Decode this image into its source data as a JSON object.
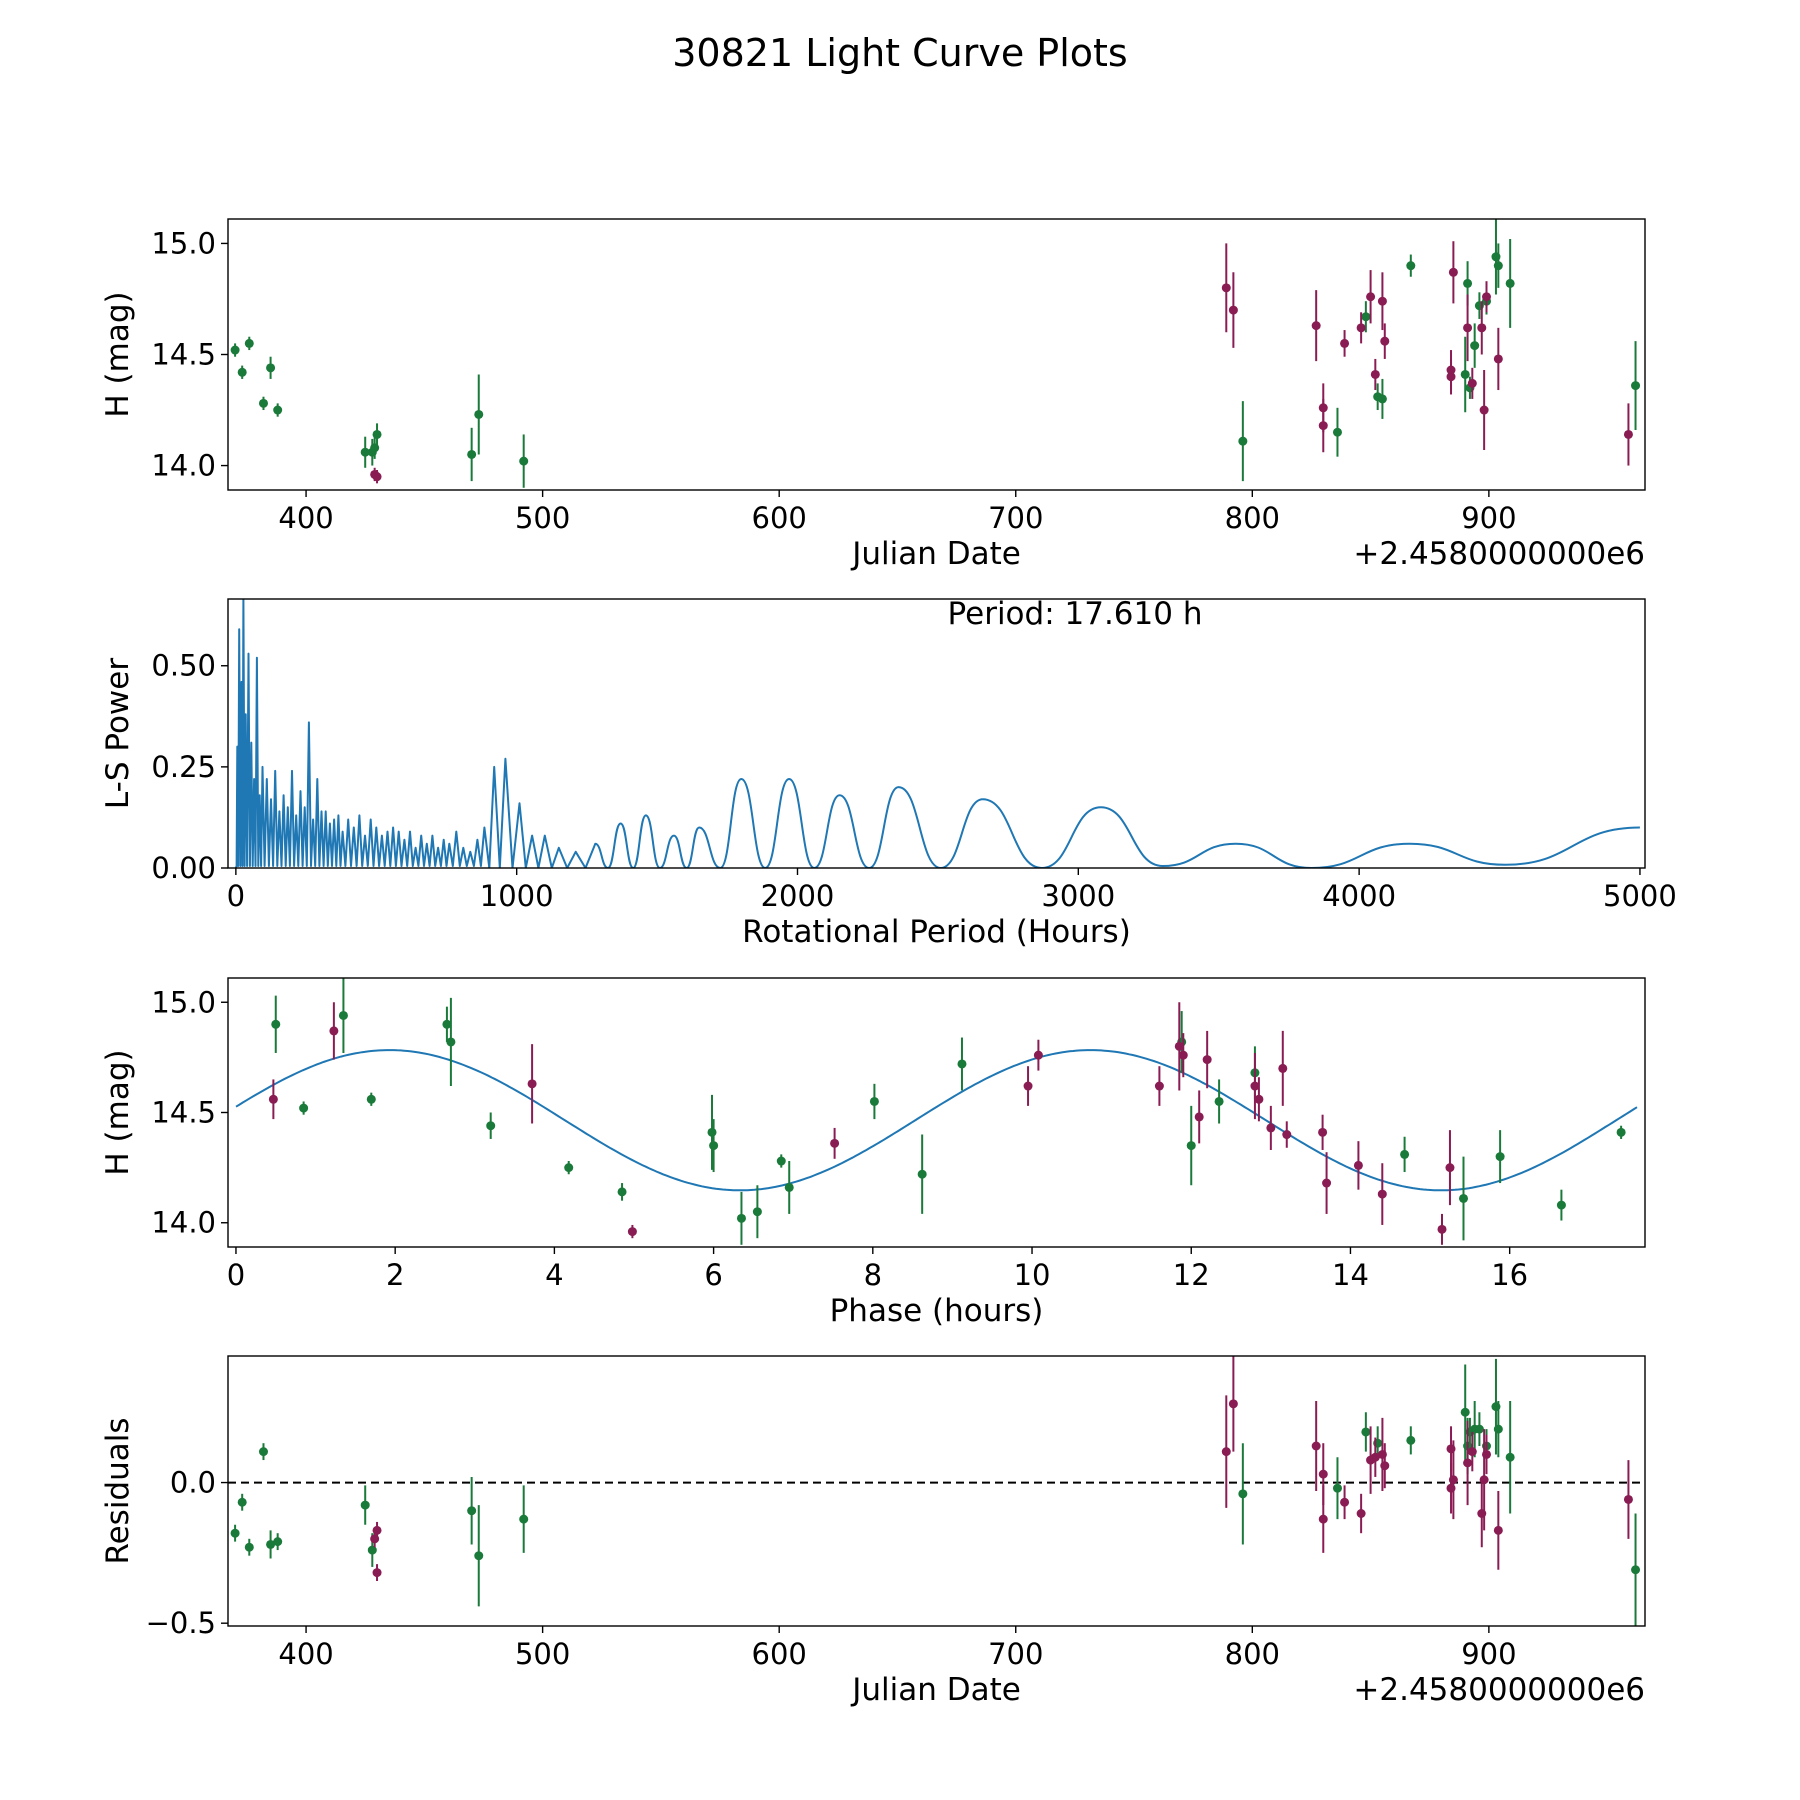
{
  "figure": {
    "title": "30821 Light Curve Plots"
  },
  "colors": {
    "green": "#1a7a3a",
    "magenta": "#8a1c54",
    "curve": "#1f77b4",
    "zeroline": "#000000"
  },
  "chart_data": [
    {
      "id": "lightcurve",
      "type": "scatter",
      "title": "",
      "xlabel": "Julian Date",
      "ylabel": "H (mag)",
      "offset_text": "+2.4580000000e6",
      "xlim": [
        367,
        966
      ],
      "ylim": [
        13.89,
        15.11
      ],
      "xticks": [
        400,
        500,
        600,
        700,
        800,
        900
      ],
      "xtick_labels": [
        "400",
        "500",
        "600",
        "700",
        "800",
        "900"
      ],
      "yticks": [
        14.0,
        14.5,
        15.0
      ],
      "ytick_labels": [
        "14.0",
        "14.5",
        "15.0"
      ],
      "series": [
        {
          "name": "green",
          "color": "#1a7a3a",
          "x": [
            370,
            373,
            376,
            382,
            385,
            388,
            425,
            428,
            429,
            430,
            470,
            473,
            492,
            796,
            836,
            848,
            853,
            855,
            867,
            890,
            891,
            892,
            894,
            896,
            899,
            903,
            904,
            909,
            962
          ],
          "y": [
            14.52,
            14.42,
            14.55,
            14.28,
            14.44,
            14.25,
            14.06,
            14.06,
            14.08,
            14.14,
            14.05,
            14.23,
            14.02,
            14.11,
            14.15,
            14.67,
            14.31,
            14.3,
            14.9,
            14.41,
            14.82,
            14.35,
            14.54,
            14.72,
            14.74,
            14.94,
            14.9,
            14.82,
            14.36
          ],
          "err": [
            0.03,
            0.03,
            0.03,
            0.03,
            0.05,
            0.03,
            0.07,
            0.06,
            0.05,
            0.05,
            0.12,
            0.18,
            0.12,
            0.18,
            0.11,
            0.07,
            0.06,
            0.09,
            0.05,
            0.17,
            0.1,
            0.05,
            0.1,
            0.06,
            0.06,
            0.17,
            0.1,
            0.2,
            0.2
          ]
        },
        {
          "name": "magenta",
          "color": "#8a1c54",
          "x": [
            789,
            792,
            827,
            830,
            830,
            839,
            846,
            850,
            852,
            855,
            856,
            884,
            884,
            885,
            891,
            893,
            897,
            898,
            899,
            904,
            959,
            429,
            430
          ],
          "y": [
            14.8,
            14.7,
            14.63,
            14.26,
            14.18,
            14.55,
            14.62,
            14.76,
            14.41,
            14.74,
            14.56,
            14.43,
            14.4,
            14.87,
            14.62,
            14.37,
            14.62,
            14.25,
            14.76,
            14.48,
            14.14,
            13.96,
            13.95
          ],
          "err": [
            0.2,
            0.17,
            0.16,
            0.11,
            0.12,
            0.06,
            0.07,
            0.12,
            0.07,
            0.13,
            0.08,
            0.09,
            0.08,
            0.14,
            0.15,
            0.07,
            0.12,
            0.18,
            0.07,
            0.14,
            0.14,
            0.03,
            0.03
          ]
        }
      ]
    },
    {
      "id": "periodogram",
      "type": "line",
      "title": "",
      "xlabel": "Rotational Period (Hours)",
      "ylabel": "L-S Power",
      "annotation": "Period: 17.610 h",
      "xlim": [
        -28,
        5018
      ],
      "ylim": [
        0,
        0.665
      ],
      "xticks": [
        0,
        1000,
        2000,
        3000,
        4000,
        5000
      ],
      "xtick_labels": [
        "0",
        "1000",
        "2000",
        "3000",
        "4000",
        "5000"
      ],
      "yticks": [
        0.0,
        0.25,
        0.5
      ],
      "ytick_labels": [
        "0.00",
        "0.25",
        "0.50"
      ],
      "series": [
        {
          "name": "L-S power",
          "color": "#1f77b4",
          "peaks": [
            [
              5,
              0.3
            ],
            [
              12,
              0.59
            ],
            [
              20,
              0.46
            ],
            [
              27,
              0.67
            ],
            [
              35,
              0.38
            ],
            [
              45,
              0.53
            ],
            [
              55,
              0.31
            ],
            [
              65,
              0.22
            ],
            [
              75,
              0.52
            ],
            [
              85,
              0.18
            ],
            [
              95,
              0.25
            ],
            [
              110,
              0.22
            ],
            [
              125,
              0.17
            ],
            [
              140,
              0.24
            ],
            [
              155,
              0.14
            ],
            [
              170,
              0.18
            ],
            [
              185,
              0.15
            ],
            [
              200,
              0.24
            ],
            [
              215,
              0.13
            ],
            [
              230,
              0.19
            ],
            [
              245,
              0.15
            ],
            [
              260,
              0.36
            ],
            [
              275,
              0.12
            ],
            [
              290,
              0.22
            ],
            [
              305,
              0.14
            ],
            [
              320,
              0.14
            ],
            [
              335,
              0.11
            ],
            [
              350,
              0.12
            ],
            [
              365,
              0.13
            ],
            [
              380,
              0.09
            ],
            [
              400,
              0.12
            ],
            [
              420,
              0.1
            ],
            [
              440,
              0.13
            ],
            [
              460,
              0.08
            ],
            [
              480,
              0.12
            ],
            [
              500,
              0.1
            ],
            [
              520,
              0.08
            ],
            [
              540,
              0.09
            ],
            [
              560,
              0.1
            ],
            [
              580,
              0.09
            ],
            [
              600,
              0.07
            ],
            [
              620,
              0.09
            ],
            [
              640,
              0.05
            ],
            [
              660,
              0.08
            ],
            [
              680,
              0.06
            ],
            [
              700,
              0.08
            ],
            [
              720,
              0.05
            ],
            [
              740,
              0.07
            ],
            [
              760,
              0.06
            ],
            [
              785,
              0.09
            ],
            [
              810,
              0.05
            ],
            [
              835,
              0.04
            ],
            [
              860,
              0.07
            ],
            [
              885,
              0.1
            ],
            [
              920,
              0.25
            ],
            [
              960,
              0.27
            ],
            [
              1010,
              0.16
            ],
            [
              1055,
              0.08
            ],
            [
              1100,
              0.08
            ],
            [
              1150,
              0.05
            ],
            [
              1210,
              0.04
            ],
            [
              1280,
              0.06
            ],
            [
              1370,
              0.11
            ],
            [
              1460,
              0.13
            ],
            [
              1560,
              0.08
            ],
            [
              1650,
              0.1
            ],
            [
              1800,
              0.22
            ],
            [
              1970,
              0.22
            ],
            [
              2150,
              0.18
            ],
            [
              2360,
              0.2
            ],
            [
              2660,
              0.17
            ],
            [
              3080,
              0.15
            ],
            [
              3560,
              0.06
            ],
            [
              4180,
              0.06
            ]
          ],
          "troughs": [
            [
              3300,
              0.005
            ],
            [
              3830,
              0.0
            ],
            [
              4520,
              0.008
            ],
            [
              5000,
              0.1
            ]
          ]
        }
      ]
    },
    {
      "id": "phased",
      "type": "scatter",
      "title": "",
      "xlabel": "Phase (hours)",
      "ylabel": "H (mag)",
      "xlim": [
        -0.1,
        17.7
      ],
      "ylim": [
        13.89,
        15.11
      ],
      "xticks": [
        0,
        2,
        4,
        6,
        8,
        10,
        12,
        14,
        16
      ],
      "xtick_labels": [
        "0",
        "2",
        "4",
        "6",
        "8",
        "10",
        "12",
        "14",
        "16"
      ],
      "yticks": [
        14.0,
        14.5,
        15.0
      ],
      "ytick_labels": [
        "14.0",
        "14.5",
        "15.0"
      ],
      "model": {
        "mean": 14.465,
        "amplitude": 0.318,
        "period": 8.805,
        "peak_phase": 1.93,
        "x_range": [
          0,
          17.6
        ]
      },
      "series": [
        {
          "name": "green",
          "color": "#1a7a3a",
          "x": [
            0.5,
            0.85,
            1.35,
            1.7,
            2.65,
            2.7,
            3.2,
            4.18,
            4.85,
            5.98,
            6.0,
            6.35,
            6.55,
            6.85,
            6.95,
            8.02,
            8.62,
            9.12,
            11.88,
            12.0,
            12.35,
            12.8,
            14.68,
            15.42,
            15.88,
            16.65,
            17.4
          ],
          "y": [
            14.9,
            14.52,
            14.94,
            14.56,
            14.9,
            14.82,
            14.44,
            14.25,
            14.14,
            14.41,
            14.35,
            14.02,
            14.05,
            14.28,
            14.16,
            14.55,
            14.22,
            14.72,
            14.82,
            14.35,
            14.55,
            14.68,
            14.31,
            14.11,
            14.3,
            14.08,
            14.41
          ],
          "err": [
            0.13,
            0.03,
            0.17,
            0.03,
            0.08,
            0.2,
            0.06,
            0.03,
            0.04,
            0.17,
            0.12,
            0.12,
            0.12,
            0.03,
            0.12,
            0.08,
            0.18,
            0.12,
            0.14,
            0.18,
            0.1,
            0.12,
            0.08,
            0.19,
            0.12,
            0.07,
            0.03
          ]
        },
        {
          "name": "magenta",
          "color": "#8a1c54",
          "x": [
            0.47,
            1.23,
            3.72,
            4.98,
            7.52,
            9.95,
            10.08,
            11.6,
            11.85,
            11.9,
            12.1,
            12.2,
            12.8,
            12.85,
            13.0,
            13.15,
            13.2,
            13.65,
            13.7,
            14.1,
            14.4,
            15.15,
            15.25
          ],
          "y": [
            14.56,
            14.87,
            14.63,
            13.96,
            14.36,
            14.62,
            14.76,
            14.62,
            14.8,
            14.76,
            14.48,
            14.74,
            14.62,
            14.56,
            14.43,
            14.7,
            14.4,
            14.41,
            14.18,
            14.26,
            14.13,
            13.97,
            14.25
          ],
          "err": [
            0.09,
            0.13,
            0.18,
            0.03,
            0.07,
            0.09,
            0.07,
            0.09,
            0.2,
            0.1,
            0.12,
            0.13,
            0.15,
            0.1,
            0.1,
            0.17,
            0.06,
            0.08,
            0.14,
            0.11,
            0.14,
            0.07,
            0.17
          ]
        }
      ]
    },
    {
      "id": "residuals",
      "type": "scatter",
      "title": "",
      "xlabel": "Julian Date",
      "ylabel": "Residuals",
      "offset_text": "+2.4580000000e6",
      "xlim": [
        367,
        966
      ],
      "ylim": [
        -0.51,
        0.45
      ],
      "xticks": [
        400,
        500,
        600,
        700,
        800,
        900
      ],
      "xtick_labels": [
        "400",
        "500",
        "600",
        "700",
        "800",
        "900"
      ],
      "yticks": [
        -0.5,
        0.0
      ],
      "ytick_labels": [
        "−0.5",
        "0.0"
      ],
      "zero_line": 0.0,
      "series": [
        {
          "name": "green",
          "color": "#1a7a3a",
          "x": [
            370,
            373,
            376,
            382,
            385,
            388,
            425,
            428,
            470,
            473,
            492,
            796,
            836,
            848,
            853,
            867,
            890,
            891,
            892,
            894,
            896,
            899,
            903,
            904,
            909,
            962
          ],
          "y": [
            -0.18,
            -0.07,
            -0.23,
            0.11,
            -0.22,
            -0.21,
            -0.08,
            -0.24,
            -0.1,
            -0.26,
            -0.13,
            -0.04,
            -0.02,
            0.18,
            0.14,
            0.15,
            0.25,
            0.13,
            0.18,
            0.19,
            0.19,
            0.13,
            0.27,
            0.19,
            0.09,
            -0.31
          ],
          "err": [
            0.03,
            0.03,
            0.03,
            0.03,
            0.05,
            0.03,
            0.07,
            0.06,
            0.12,
            0.18,
            0.12,
            0.18,
            0.11,
            0.07,
            0.06,
            0.05,
            0.17,
            0.1,
            0.05,
            0.1,
            0.06,
            0.06,
            0.17,
            0.1,
            0.2,
            0.2
          ]
        },
        {
          "name": "magenta",
          "color": "#8a1c54",
          "x": [
            429,
            430,
            430,
            789,
            792,
            827,
            830,
            830,
            839,
            846,
            850,
            852,
            855,
            856,
            884,
            884,
            885,
            891,
            893,
            897,
            898,
            899,
            904,
            959
          ],
          "y": [
            -0.2,
            -0.32,
            -0.17,
            0.11,
            0.28,
            0.13,
            0.03,
            -0.13,
            -0.07,
            -0.11,
            0.08,
            0.09,
            0.1,
            0.06,
            -0.02,
            0.12,
            0.01,
            0.07,
            0.11,
            -0.11,
            0.01,
            0.1,
            -0.17,
            -0.06
          ],
          "err": [
            0.03,
            0.03,
            0.03,
            0.2,
            0.17,
            0.16,
            0.11,
            0.12,
            0.06,
            0.07,
            0.12,
            0.07,
            0.13,
            0.08,
            0.09,
            0.08,
            0.14,
            0.15,
            0.07,
            0.12,
            0.18,
            0.07,
            0.14,
            0.14
          ]
        }
      ]
    }
  ]
}
